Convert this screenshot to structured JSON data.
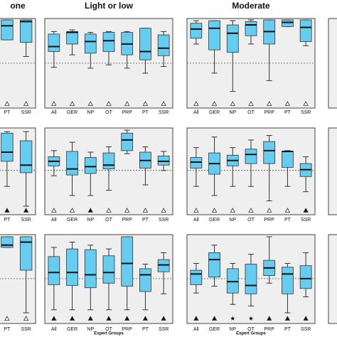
{
  "chart_data": [
    {
      "type": "box",
      "title": "one",
      "categories": [
        "PT",
        "SSR"
      ],
      "color": "#66ccf0",
      "ylim": [
        0,
        100
      ],
      "reference": 48,
      "boxes": [
        {
          "whislo": 76,
          "q1": 76,
          "med": 93,
          "q3": 100,
          "whishi": 100
        },
        {
          "whislo": 56,
          "q1": 73,
          "med": 98,
          "q3": 100,
          "whishi": 100
        }
      ],
      "markers": [
        "open",
        "open"
      ]
    },
    {
      "type": "box",
      "title": "Light or low",
      "categories": [
        "All",
        "GER",
        "NP",
        "OT",
        "PRP",
        "PT",
        "SSR"
      ],
      "color": "#66ccf0",
      "ylim": [
        0,
        100
      ],
      "reference": 48,
      "boxes": [
        {
          "whislo": 43,
          "q1": 62,
          "med": 68,
          "q3": 83,
          "whishi": 86
        },
        {
          "whislo": 58,
          "q1": 71,
          "med": 85,
          "q3": 86,
          "whishi": 88
        },
        {
          "whislo": 42,
          "q1": 60,
          "med": 74,
          "q3": 83,
          "whishi": 85
        },
        {
          "whislo": 46,
          "q1": 62,
          "med": 75,
          "q3": 85,
          "whishi": 86
        },
        {
          "whislo": 42,
          "q1": 58,
          "med": 71,
          "q3": 85,
          "whishi": 86
        },
        {
          "whislo": 36,
          "q1": 52,
          "med": 62,
          "q3": 90,
          "whishi": 90
        },
        {
          "whislo": 44,
          "q1": 57,
          "med": 66,
          "q3": 82,
          "whishi": 86
        }
      ],
      "markers": [
        "open",
        "open",
        "open",
        "open",
        "open",
        "open",
        "open"
      ]
    },
    {
      "type": "box",
      "title": "Moderate",
      "categories": [
        "All",
        "GER",
        "NP",
        "OT",
        "PRP",
        "PT",
        "SSR"
      ],
      "color": "#66ccf0",
      "ylim": [
        0,
        100
      ],
      "reference": 48,
      "boxes": [
        {
          "whislo": 71,
          "q1": 78,
          "med": 89,
          "q3": 96,
          "whishi": 99
        },
        {
          "whislo": 36,
          "q1": 64,
          "med": 90,
          "q3": 99,
          "whishi": 99
        },
        {
          "whislo": 14,
          "q1": 61,
          "med": 84,
          "q3": 94,
          "whishi": 99
        },
        {
          "whislo": 71,
          "q1": 81,
          "med": 94,
          "q3": 98,
          "whishi": 100
        },
        {
          "whislo": 27,
          "q1": 71,
          "med": 86,
          "q3": 100,
          "whishi": 100
        },
        {
          "whislo": 92,
          "q1": 92,
          "med": 97,
          "q3": 100,
          "whishi": 100
        },
        {
          "whislo": 69,
          "q1": 74,
          "med": 91,
          "q3": 100,
          "whishi": 100
        }
      ],
      "markers": [
        "open",
        "open",
        "open",
        "open",
        "open",
        "open",
        "open"
      ]
    },
    {
      "type": "box",
      "categories": [
        "PT",
        "SSR"
      ],
      "color": "#66ccf0",
      "ylim": [
        0,
        100
      ],
      "reference": 47,
      "boxes": [
        {
          "whislo": 26,
          "q1": 59,
          "med": 71,
          "q3": 96,
          "whishi": 98
        },
        {
          "whislo": 0,
          "q1": 44,
          "med": 54,
          "q3": 86,
          "whishi": 98
        }
      ],
      "markers": [
        "filled",
        "filled"
      ]
    },
    {
      "type": "box",
      "categories": [
        "All",
        "GER",
        "NP",
        "OT",
        "PRP",
        "PT",
        "SSR"
      ],
      "color": "#66ccf0",
      "ylim": [
        0,
        100
      ],
      "reference": 47,
      "boxes": [
        {
          "whislo": 40,
          "q1": 53,
          "med": 59,
          "q3": 65,
          "whishi": 73
        },
        {
          "whislo": 14,
          "q1": 41,
          "med": 49,
          "q3": 72,
          "whishi": 84
        },
        {
          "whislo": 14,
          "q1": 43,
          "med": 52,
          "q3": 64,
          "whishi": 71
        },
        {
          "whislo": 21,
          "q1": 49,
          "med": 54,
          "q3": 70,
          "whishi": 78
        },
        {
          "whislo": 69,
          "q1": 73,
          "med": 87,
          "q3": 96,
          "whishi": 100
        },
        {
          "whislo": 28,
          "q1": 50,
          "med": 60,
          "q3": 71,
          "whishi": 78
        },
        {
          "whislo": 47,
          "q1": 54,
          "med": 59,
          "q3": 66,
          "whishi": 72
        }
      ],
      "markers": [
        "open",
        "open",
        "filled",
        "open",
        "open",
        "open",
        "open"
      ]
    },
    {
      "type": "box",
      "categories": [
        "All",
        "GER",
        "NP",
        "OT",
        "PRP",
        "PT",
        "SSR"
      ],
      "color": "#66ccf0",
      "ylim": [
        0,
        100
      ],
      "reference": 47,
      "boxes": [
        {
          "whislo": 26,
          "q1": 50,
          "med": 58,
          "q3": 64,
          "whishi": 77
        },
        {
          "whislo": 14,
          "q1": 42,
          "med": 56,
          "q3": 70,
          "whishi": 91
        },
        {
          "whislo": 26,
          "q1": 53,
          "med": 60,
          "q3": 67,
          "whishi": 77
        },
        {
          "whislo": 26,
          "q1": 56,
          "med": 68,
          "q3": 75,
          "whishi": 87
        },
        {
          "whislo": 7,
          "q1": 56,
          "med": 73,
          "q3": 85,
          "whishi": 93
        },
        {
          "whislo": 26,
          "q1": 51,
          "med": 72,
          "q3": 72,
          "whishi": 73
        },
        {
          "whislo": 19,
          "q1": 39,
          "med": 48,
          "q3": 56,
          "whishi": 65
        }
      ],
      "markers": [
        "open",
        "open",
        "open",
        "open",
        "open",
        "open",
        "filled"
      ]
    },
    {
      "type": "box",
      "categories": [
        "PT",
        "SSR"
      ],
      "color": "#66ccf0",
      "ylim": [
        0,
        100
      ],
      "reference": 45,
      "boxes": [
        {
          "whislo": 86,
          "q1": 86,
          "med": 89,
          "q3": 100,
          "whishi": 100
        },
        {
          "whislo": 0,
          "q1": 56,
          "med": 93,
          "q3": 100,
          "whishi": 100
        }
      ],
      "markers": [
        "open",
        "open"
      ]
    },
    {
      "type": "box",
      "xlabel": "Expert Groups",
      "categories": [
        "All",
        "GER",
        "NP",
        "OT",
        "PRP",
        "PT",
        "SSR"
      ],
      "color": "#66ccf0",
      "ylim": [
        0,
        100
      ],
      "reference": 45,
      "boxes": [
        {
          "whislo": 4,
          "q1": 37,
          "med": 53,
          "q3": 74,
          "whishi": 86
        },
        {
          "whislo": 4,
          "q1": 36,
          "med": 53,
          "q3": 84,
          "whishi": 93
        },
        {
          "whislo": 4,
          "q1": 33,
          "med": 50,
          "q3": 83,
          "whishi": 89
        },
        {
          "whislo": 4,
          "q1": 39,
          "med": 53,
          "q3": 75,
          "whishi": 84
        },
        {
          "whislo": 4,
          "q1": 35,
          "med": 65,
          "q3": 100,
          "whishi": 100
        },
        {
          "whislo": 4,
          "q1": 28,
          "med": 50,
          "q3": 58,
          "whishi": 64
        },
        {
          "whislo": 25,
          "q1": 54,
          "med": 63,
          "q3": 70,
          "whishi": 79
        }
      ],
      "markers": [
        "filled",
        "filled",
        "filled",
        "filled",
        "filled",
        "filled",
        "filled"
      ]
    },
    {
      "type": "box",
      "xlabel": "Expert Groups",
      "categories": [
        "All",
        "GER",
        "NP",
        "OT",
        "PRP",
        "PT",
        "SSR"
      ],
      "color": "#66ccf0",
      "ylim": [
        0,
        100
      ],
      "reference": 45,
      "boxes": [
        {
          "whislo": 26,
          "q1": 37,
          "med": 51,
          "q3": 56,
          "whishi": 65
        },
        {
          "whislo": 35,
          "q1": 47,
          "med": 70,
          "q3": 79,
          "whishi": 89
        },
        {
          "whislo": 11,
          "q1": 26,
          "med": 41,
          "q3": 58,
          "whishi": 65
        },
        {
          "whislo": 9,
          "q1": 25,
          "med": 36,
          "q3": 64,
          "whishi": 77
        },
        {
          "whislo": 39,
          "q1": 49,
          "med": 59,
          "q3": 69,
          "whishi": 100
        },
        {
          "whislo": 0,
          "q1": 25,
          "med": 51,
          "q3": 60,
          "whishi": 65
        },
        {
          "whislo": 21,
          "q1": 32,
          "med": 45,
          "q3": 62,
          "whishi": 79
        }
      ],
      "markers": [
        "filled",
        "filled",
        "star",
        "star",
        "filled",
        "filled",
        "filled"
      ]
    }
  ]
}
